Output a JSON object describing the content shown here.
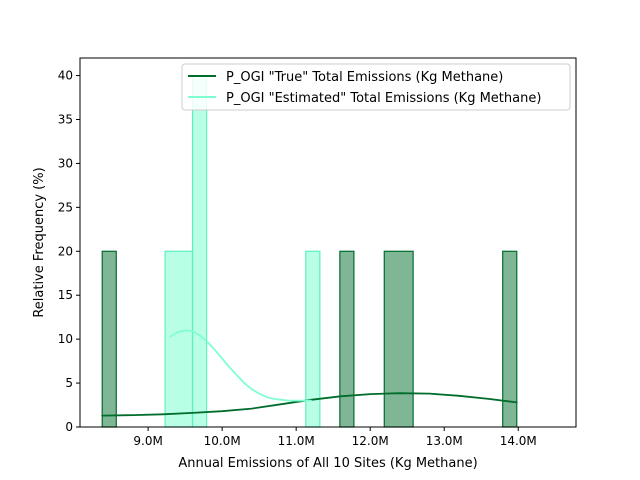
{
  "chart_data": {
    "type": "bar",
    "subtype": "histogram-with-kde",
    "title": "",
    "xlabel": "Annual Emissions of All 10 Sites (Kg Methane)",
    "ylabel": "Relative Frequency (%)",
    "xlim": [
      8080000,
      14780000
    ],
    "ylim": [
      0,
      42
    ],
    "x_ticks": [
      9000000,
      10000000,
      11000000,
      12000000,
      13000000,
      14000000
    ],
    "x_tick_labels": [
      "9.0M",
      "10.0M",
      "11.0M",
      "12.0M",
      "13.0M",
      "14.0M"
    ],
    "y_ticks": [
      0,
      5,
      10,
      15,
      20,
      25,
      30,
      35,
      40
    ],
    "y_tick_labels": [
      "0",
      "5",
      "10",
      "15",
      "20",
      "25",
      "30",
      "35",
      "40"
    ],
    "grid": false,
    "legend_position": "top-right",
    "series": [
      {
        "name": "P_OGI \"True\" Total Emissions (Kg Methane)",
        "color": "#006d2c",
        "fill": "rgba(0,109,44,0.5)",
        "bars": [
          {
            "x0": 8380000,
            "x1": 8570000,
            "value": 20
          },
          {
            "x0": 11590000,
            "x1": 11780000,
            "value": 20
          },
          {
            "x0": 12190000,
            "x1": 12580000,
            "value": 20
          },
          {
            "x0": 13790000,
            "x1": 13980000,
            "value": 20
          }
        ],
        "kde": {
          "x": [
            8380000,
            8800000,
            9200000,
            9600000,
            10000000,
            10400000,
            10800000,
            11200000,
            11600000,
            12000000,
            12400000,
            12800000,
            13200000,
            13600000,
            13980000
          ],
          "y": [
            1.3,
            1.35,
            1.45,
            1.6,
            1.8,
            2.1,
            2.6,
            3.1,
            3.5,
            3.75,
            3.85,
            3.8,
            3.55,
            3.2,
            2.8
          ]
        }
      },
      {
        "name": "P_OGI \"Estimated\" Total Emissions (Kg Methane)",
        "color": "#7fffd0",
        "edge": "#5ef0c0",
        "fill": "rgba(127,255,208,0.55)",
        "bars": [
          {
            "x0": 9230000,
            "x1": 9600000,
            "value": 20
          },
          {
            "x0": 9600000,
            "x1": 9790000,
            "value": 40
          },
          {
            "x0": 11130000,
            "x1": 11320000,
            "value": 20
          }
        ],
        "kde": {
          "x": [
            9300000,
            9400000,
            9500000,
            9600000,
            9700000,
            9800000,
            9900000,
            10000000,
            10100000,
            10200000,
            10300000,
            10400000,
            10500000,
            10600000,
            10700000,
            10800000,
            10900000,
            11000000,
            11100000,
            11200000
          ],
          "y": [
            10.3,
            10.8,
            11.0,
            10.9,
            10.4,
            9.7,
            8.8,
            7.8,
            6.8,
            5.9,
            5.0,
            4.3,
            3.8,
            3.4,
            3.2,
            3.1,
            3.0,
            3.0,
            3.0,
            3.0
          ]
        }
      }
    ]
  }
}
